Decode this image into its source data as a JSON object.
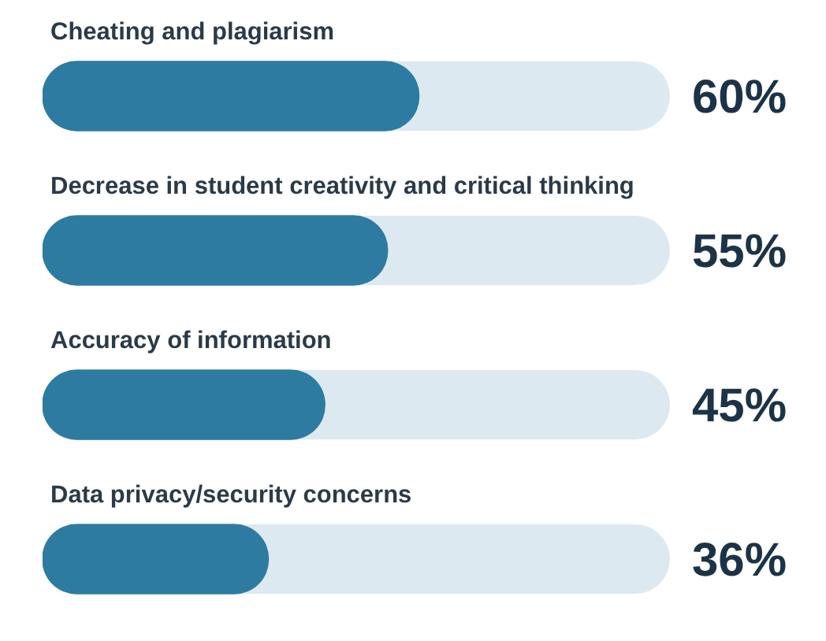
{
  "chart_data": {
    "type": "bar",
    "orientation": "horizontal",
    "categories": [
      "Cheating and plagiarism",
      "Decrease in student creativity and critical thinking",
      "Accuracy of information",
      "Data privacy/security concerns"
    ],
    "values": [
      60,
      55,
      45,
      36
    ],
    "value_labels": [
      "60%",
      "55%",
      "45%",
      "36%"
    ],
    "color": "#2e7ba1",
    "xlim": [
      0,
      100
    ],
    "tick_labels": false
  }
}
